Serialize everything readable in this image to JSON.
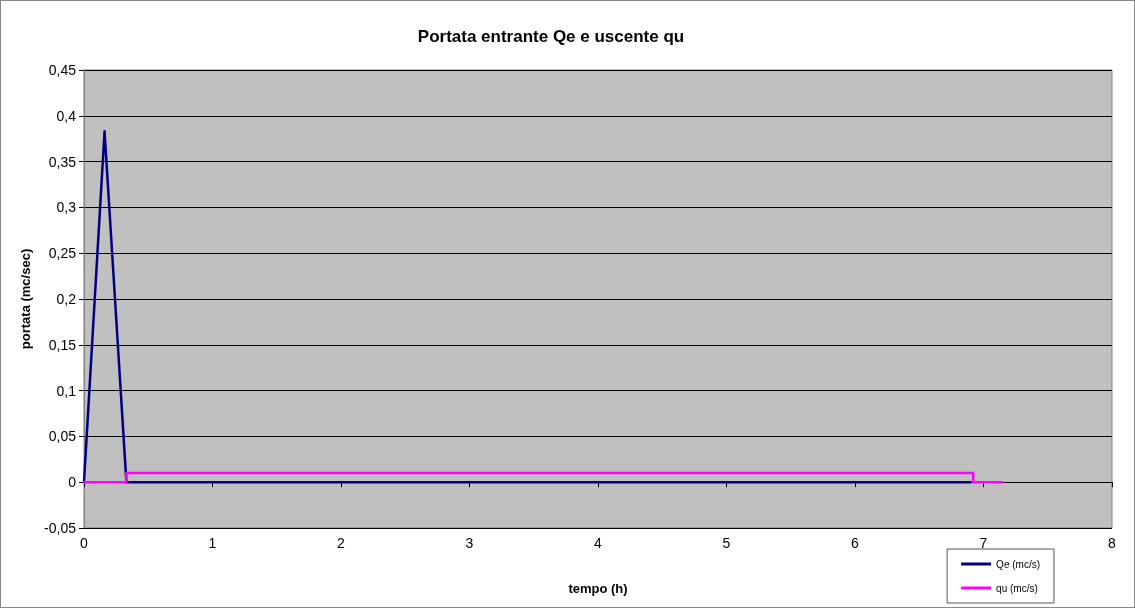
{
  "chart_data": {
    "type": "line",
    "title": "Portata entrante Qe e uscente qu",
    "xlabel": "tempo (h)",
    "ylabel": "portata (mc/sec)",
    "series": [
      {
        "name": "Qe (mc/s)",
        "color": "#000080",
        "x": [
          0,
          0.16,
          0.33,
          6.9
        ],
        "values": [
          0,
          0.383,
          0,
          0
        ]
      },
      {
        "name": "qu (mc/s)",
        "color": "#ff00ff",
        "x": [
          0,
          0.33,
          0.33,
          6.92,
          6.92,
          7.15
        ],
        "values": [
          0,
          0,
          0.01,
          0.01,
          0,
          0
        ]
      }
    ],
    "xlim": [
      0,
      8
    ],
    "xticks": [
      0,
      1,
      2,
      3,
      4,
      5,
      6,
      7,
      8
    ],
    "ylim": [
      -0.05,
      0.45
    ],
    "yticks": [
      {
        "value": -0.05,
        "label": "-0,05"
      },
      0,
      {
        "value": 0.05,
        "label": "0,05"
      },
      {
        "value": 0.1,
        "label": "0,1"
      },
      {
        "value": 0.15,
        "label": "0,15"
      },
      {
        "value": 0.2,
        "label": "0,2"
      },
      {
        "value": 0.25,
        "label": "0,25"
      },
      {
        "value": 0.3,
        "label": "0,3"
      },
      {
        "value": 0.35,
        "label": "0,35"
      },
      {
        "value": 0.4,
        "label": "0,4"
      },
      {
        "value": 0.45,
        "label": "0,45"
      }
    ],
    "grid": "y",
    "legend": "bottom right",
    "marker": "none",
    "line_style": "solid"
  }
}
